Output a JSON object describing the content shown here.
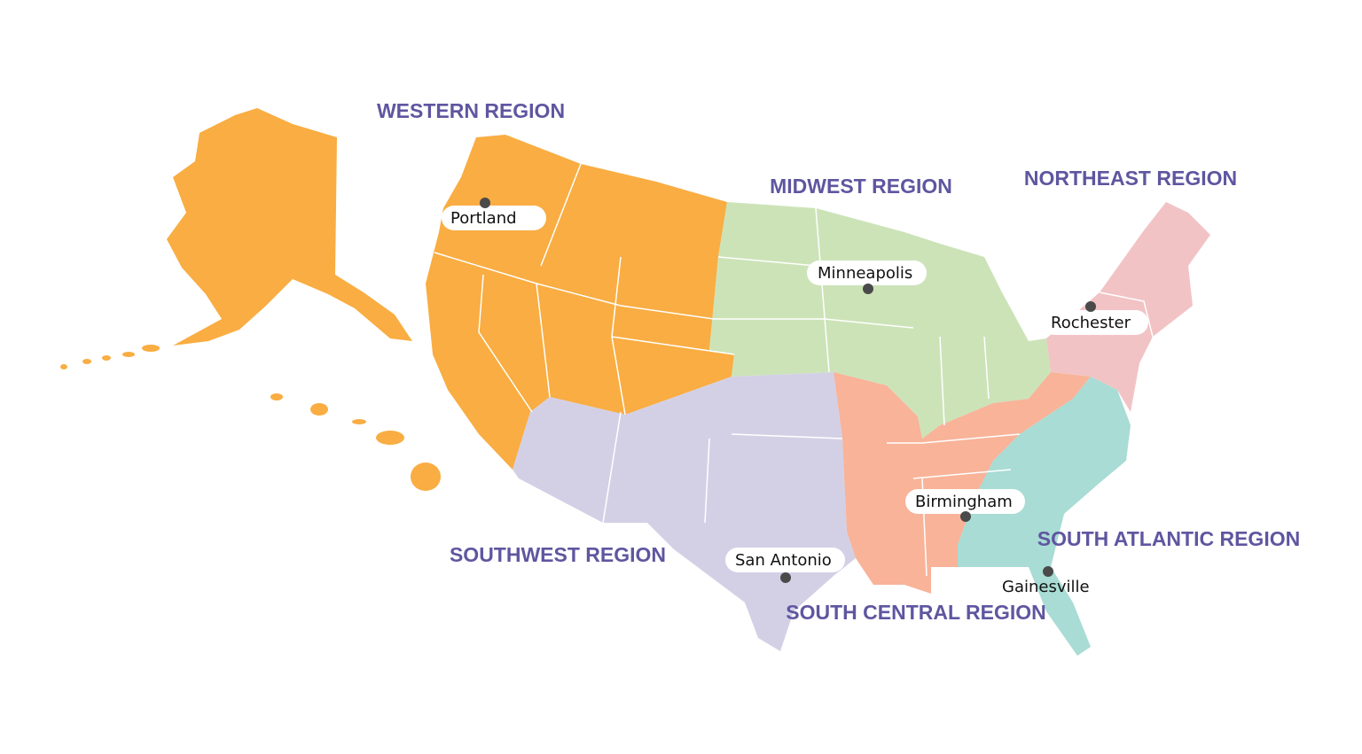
{
  "regions": [
    {
      "label": "WESTERN REGION"
    },
    {
      "label": "MIDWEST REGION"
    },
    {
      "label": "NORTHEAST REGION"
    },
    {
      "label": "SOUTHWEST REGION"
    },
    {
      "label": "SOUTH CENTRAL REGION"
    },
    {
      "label": "SOUTH ATLANTIC REGION"
    }
  ],
  "cities": [
    {
      "label": "Portland"
    },
    {
      "label": "Minneapolis"
    },
    {
      "label": "Rochester"
    },
    {
      "label": "San Antonio"
    },
    {
      "label": "Birmingham"
    },
    {
      "label": "Gainesville"
    }
  ]
}
